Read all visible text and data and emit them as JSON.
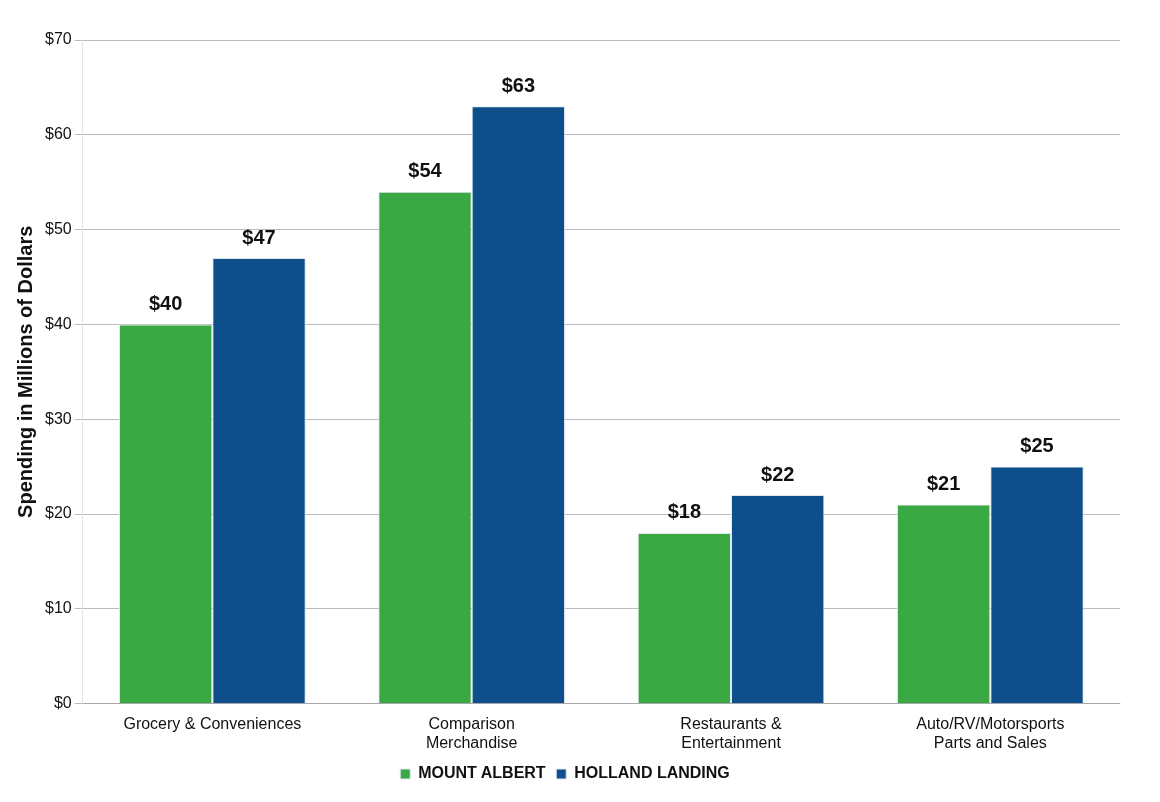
{
  "chart_data": {
    "type": "bar",
    "ylabel": "Spending in Millions of Dollars",
    "categories": [
      "Grocery & Conveniences",
      "Comparison\nMerchandise",
      "Restaurants &\nEntertainment",
      "Auto/RV/Motorsports\nParts and Sales"
    ],
    "series": [
      {
        "name": "MOUNT ALBERT",
        "color": "#3aa843",
        "values": [
          40,
          54,
          18,
          21
        ],
        "value_labels": [
          "$40",
          "$54",
          "$18",
          "$21"
        ]
      },
      {
        "name": "HOLLAND LANDING",
        "color": "#0e4f8b",
        "values": [
          47,
          63,
          22,
          25
        ],
        "value_labels": [
          "$47",
          "$63",
          "$22",
          "$25"
        ]
      }
    ],
    "ylim": [
      0,
      70
    ],
    "yticks": [
      {
        "value": 0,
        "label": "$0"
      },
      {
        "value": 10,
        "label": "$10"
      },
      {
        "value": 20,
        "label": "$20"
      },
      {
        "value": 30,
        "label": "$30"
      },
      {
        "value": 40,
        "label": "$40"
      },
      {
        "value": 50,
        "label": "$50"
      },
      {
        "value": 60,
        "label": "$60"
      },
      {
        "value": 70,
        "label": "$70"
      }
    ],
    "grid": "y",
    "legend": "bottom"
  }
}
